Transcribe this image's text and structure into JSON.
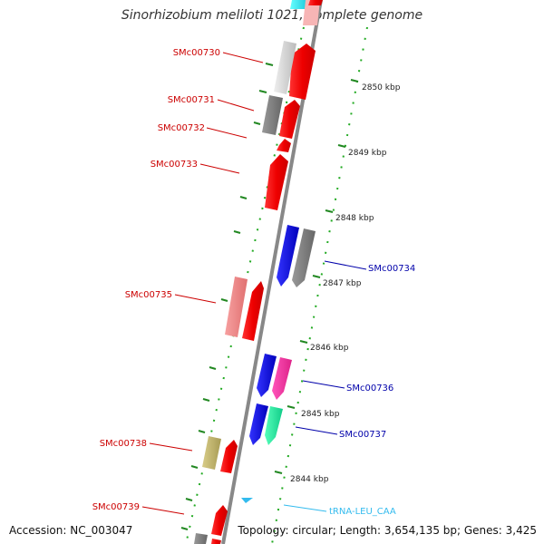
{
  "title": "Sinorhizobium meliloti 1021, complete genome",
  "footer": {
    "accession": "Accession: NC_003047",
    "summary": "Topology: circular; Length: 3,654,135 bp; Genes: 3,425"
  },
  "ruler_labels": [
    "2850 kbp",
    "2849 kbp",
    "2848 kbp",
    "2847 kbp",
    "2846 kbp",
    "2845 kbp",
    "2844 kbp"
  ],
  "genes": [
    {
      "name": "SMc00730",
      "color": "#ff0000",
      "strand": "forward"
    },
    {
      "name": "SMc00731",
      "color": "#ff0000",
      "strand": "forward"
    },
    {
      "name": "SMc00732",
      "color": "#ff0000",
      "strand": "forward"
    },
    {
      "name": "SMc00733",
      "color": "#ff0000",
      "strand": "forward"
    },
    {
      "name": "SMc00734",
      "color": "#0000cc",
      "strand": "reverse"
    },
    {
      "name": "SMc00735",
      "color": "#ff0000",
      "strand": "forward"
    },
    {
      "name": "SMc00736",
      "color": "#0000cc",
      "strand": "reverse"
    },
    {
      "name": "SMc00737",
      "color": "#0000cc",
      "strand": "reverse"
    },
    {
      "name": "SMc00738",
      "color": "#ff0000",
      "strand": "forward"
    },
    {
      "name": "SMc00739",
      "color": "#ff0000",
      "strand": "forward"
    },
    {
      "name": "tRNA-LEU_CAA",
      "color": "#33bbee",
      "strand": "reverse"
    }
  ],
  "colors": {
    "forward_gene": "#ff0000",
    "reverse_gene": "#0000ff",
    "forward_label": "#cc0000",
    "reverse_label": "#0000aa",
    "trna": "#33bbee",
    "ticks": "#228822",
    "backbone": "#888888"
  }
}
